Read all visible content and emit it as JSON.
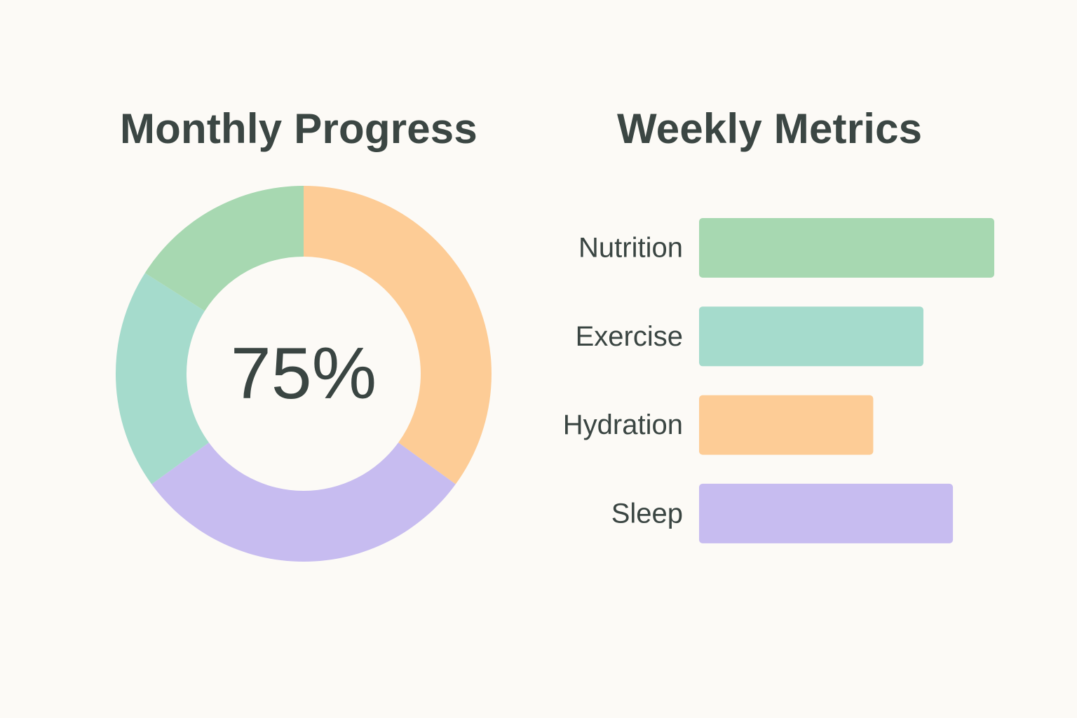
{
  "chart_data": [
    {
      "type": "pie",
      "title": "Monthly Progress",
      "center_label": "75%",
      "slices": [
        {
          "value": 35,
          "color": "#fdcc96"
        },
        {
          "value": 30,
          "color": "#c7bcf0"
        },
        {
          "value": 19,
          "color": "#a5dbcc"
        },
        {
          "value": 16,
          "color": "#a7d8b1"
        }
      ]
    },
    {
      "type": "bar",
      "orientation": "horizontal",
      "title": "Weekly Metrics",
      "categories": [
        "Nutrition",
        "Exercise",
        "Hydration",
        "Sleep"
      ],
      "values": [
        100,
        76,
        59,
        86
      ],
      "colors": [
        "#a7d8b1",
        "#a5dbcc",
        "#fdcc96",
        "#c7bcf0"
      ],
      "xlim": [
        0,
        100
      ]
    }
  ]
}
